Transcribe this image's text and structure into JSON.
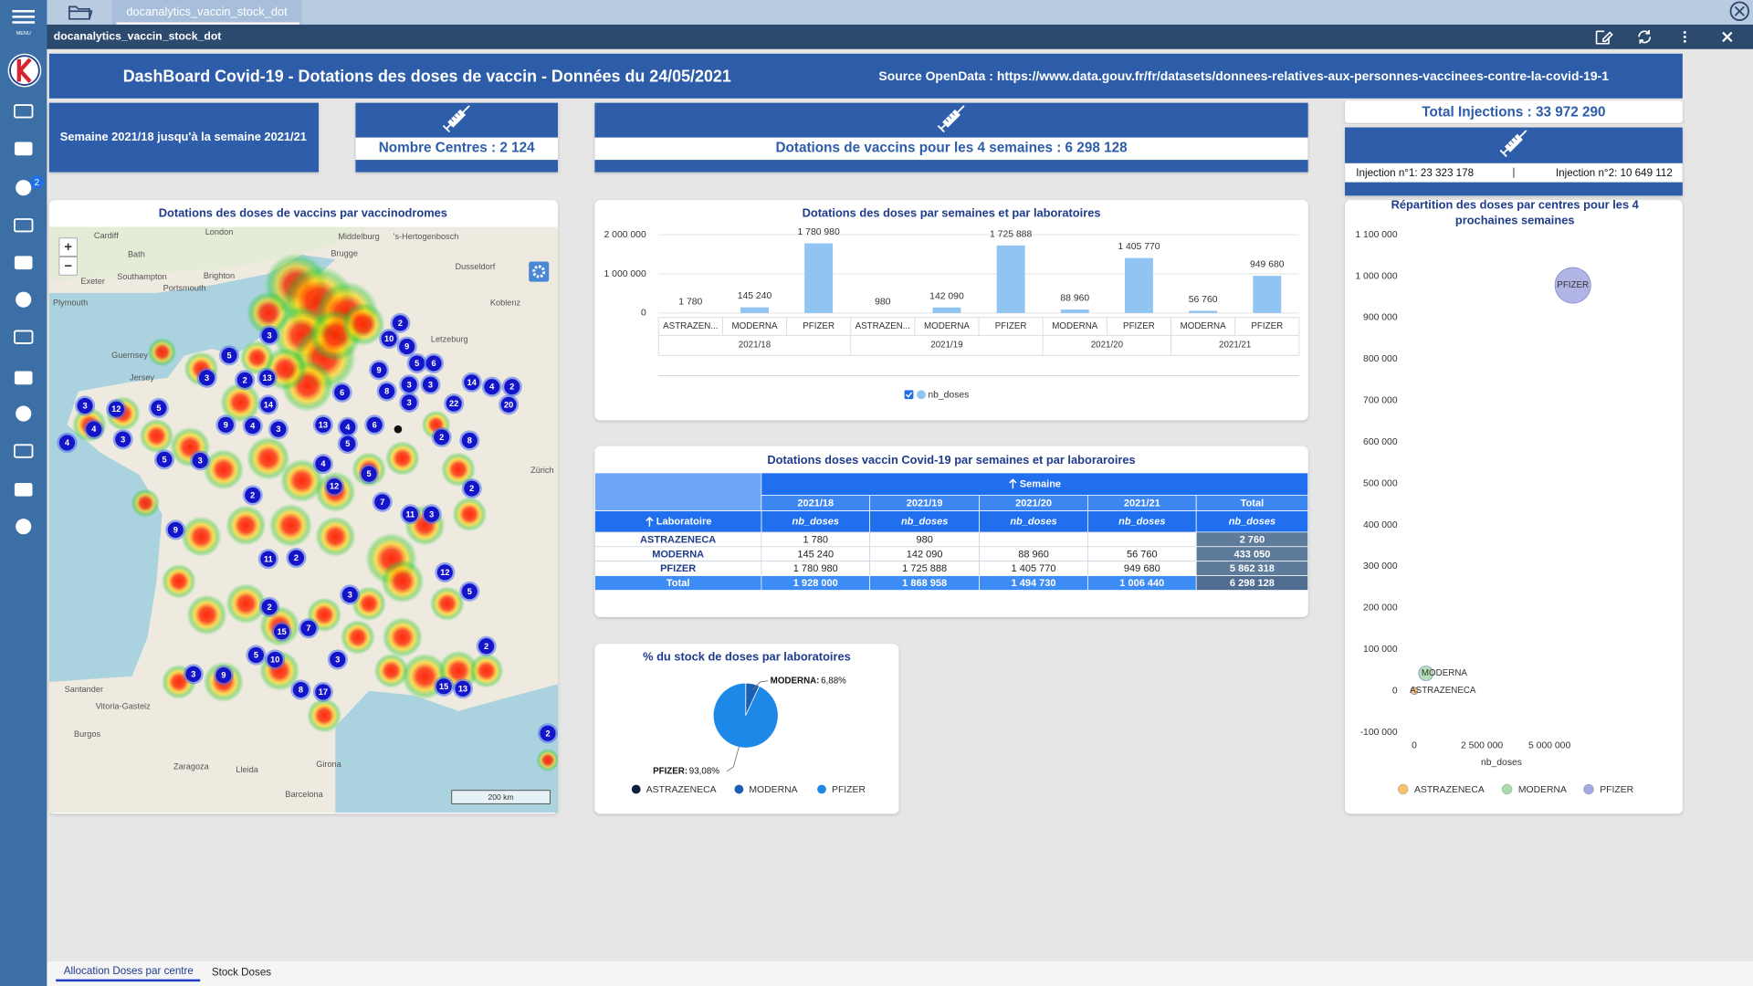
{
  "app": {
    "tab": "docanalytics_vaccin_stock_dot",
    "title": "docanalytics_vaccin_stock_dot",
    "menu_label": "MENU",
    "badge": 2
  },
  "header": {
    "title": "DashBoard Covid-19 - Dotations des doses de vaccin - Données du 24/05/2021",
    "source": "Source OpenData : https://www.data.gouv.fr/fr/datasets/donnees-relatives-aux-personnes-vaccinees-contre-la-covid-19-1"
  },
  "kpis": {
    "period": "Semaine 2021/18 jusqu'à la semaine 2021/21",
    "centres": "Nombre Centres : 2 124",
    "dotations": "Dotations de vaccins pour les 4 semaines : 6 298 128",
    "total": "Total Injections : 33 972 290",
    "injection1": "Injection n°1: 23 323 178",
    "injection2": "Injection n°2: 10 649 112"
  },
  "map": {
    "title": "Dotations des doses de vaccins par vaccinodromes",
    "zoom_in": "+",
    "zoom_out": "−",
    "scale": "200 km",
    "places": [
      "Cardiff",
      "London",
      "Middelburg",
      "'s-Hertogenbosch",
      "Bath",
      "Brugge",
      "Dusseldorf",
      "Exeter",
      "Southampton",
      "Brighton",
      "Portsmouth",
      "Plymouth",
      "Koblenz",
      "Letzeburg",
      "Guernsey",
      "Jersey",
      "Zürich",
      "Santander",
      "Vitoria-Gasteiz",
      "Burgos",
      "Zaragoza",
      "Lleida",
      "Girona",
      "Barcelona"
    ],
    "clusters": [
      3,
      5,
      3,
      2,
      13,
      3,
      12,
      5,
      4,
      4,
      3,
      5,
      3,
      9,
      4,
      3,
      14,
      13,
      4,
      6,
      2,
      10,
      9,
      5,
      6,
      9,
      8,
      3,
      3,
      3,
      22,
      14,
      4,
      2,
      20,
      2,
      8,
      6,
      5,
      4,
      2,
      12,
      5,
      7,
      11,
      3,
      11,
      2,
      9,
      2,
      15,
      7,
      3,
      3,
      3,
      9,
      5,
      10,
      8,
      17,
      12,
      5,
      2,
      15,
      13,
      2,
      2
    ]
  },
  "chart_data": [
    {
      "type": "bar",
      "title": "Dotations des doses par semaines et par laboratoires",
      "categories": [
        "ASTRAZEN...",
        "MODERNA",
        "PFIZER",
        "ASTRAZEN...",
        "MODERNA",
        "PFIZER",
        "MODERNA",
        "PFIZER",
        "MODERNA",
        "PFIZER"
      ],
      "groups": [
        "2021/18",
        "2021/18",
        "2021/18",
        "2021/19",
        "2021/19",
        "2021/19",
        "2021/20",
        "2021/20",
        "2021/21",
        "2021/21"
      ],
      "series": [
        {
          "name": "nb_doses",
          "color": "#90c4f2",
          "values": [
            1780,
            145240,
            1780980,
            980,
            142090,
            1725888,
            88960,
            1405770,
            56760,
            949680
          ],
          "value_labels": [
            "1 780",
            "145 240",
            "1 780 980",
            "980",
            "142 090",
            "1 725 888",
            "88 960",
            "1 405 770",
            "56 760",
            "949 680"
          ]
        }
      ],
      "ylim": [
        0,
        2000000
      ],
      "yticks": [
        0,
        {
          "value": 1000000,
          "label": "1 000 000"
        },
        {
          "value": 2000000,
          "label": "2 000 000"
        }
      ],
      "grid": true
    },
    {
      "type": "pie",
      "title": "% du stock de doses par laboratoires",
      "categories": [
        "ASTRAZENECA",
        "MODERNA",
        "PFIZER"
      ],
      "values": [
        0.04,
        6.88,
        93.08
      ],
      "value_labels": [
        null,
        "6,88%",
        "93,08%"
      ],
      "colors": [
        "#0e1f3d",
        "#1b5fb5",
        "#1e88e8"
      ]
    },
    {
      "type": "scatter",
      "title": "Répartition des doses par centres pour les 4 prochaines semaines",
      "x_label": "nb_doses",
      "xlim": [
        0,
        6600000
      ],
      "xticks": [
        0,
        {
          "value": 2500000,
          "label": "2 500 000"
        },
        {
          "value": 5000000,
          "label": "5 000 000"
        }
      ],
      "ylim": [
        -100000,
        1100000
      ],
      "yticks": [
        {
          "value": -100000,
          "label": "-100 000"
        },
        0,
        {
          "value": 100000,
          "label": "100 000"
        },
        {
          "value": 200000,
          "label": "200 000"
        },
        {
          "value": 300000,
          "label": "300 000"
        },
        {
          "value": 400000,
          "label": "400 000"
        },
        {
          "value": 500000,
          "label": "500 000"
        },
        {
          "value": 600000,
          "label": "600 000"
        },
        {
          "value": 700000,
          "label": "700 000"
        },
        {
          "value": 800000,
          "label": "800 000"
        },
        {
          "value": 900000,
          "label": "900 000"
        },
        {
          "value": 1000000,
          "label": "1 000 000"
        },
        {
          "value": 1100000,
          "label": "1 100 000"
        }
      ],
      "series": [
        {
          "name": "ASTRAZENECA",
          "color": "#f7c06a",
          "x": [
            2760
          ],
          "values": [
            0
          ]
        },
        {
          "name": "MODERNA",
          "color": "#a9dca9",
          "x": [
            433050
          ],
          "values": [
            42000
          ]
        },
        {
          "name": "PFIZER",
          "color": "#a3a8e0",
          "x": [
            5862318
          ],
          "values": [
            978000
          ]
        }
      ]
    }
  ],
  "table": {
    "title": "Dotations doses vaccin Covid-19 par semaines et par laboraroires",
    "column_group": "Semaine",
    "row_header": "Laboratoire",
    "measure": "nb_doses",
    "columns": [
      "2021/18",
      "2021/19",
      "2021/20",
      "2021/21",
      "Total"
    ],
    "rows": [
      [
        "ASTRAZENECA",
        "1 780",
        "980",
        null,
        null,
        "2 760"
      ],
      [
        "MODERNA",
        "145 240",
        "142 090",
        "88 960",
        "56 760",
        "433 050"
      ],
      [
        "PFIZER",
        "1 780 980",
        "1 725 888",
        "1 405 770",
        "949 680",
        "5 862 318"
      ],
      [
        "Total",
        "1 928 000",
        "1 868 958",
        "1 494 730",
        "1 006 440",
        "6 298 128"
      ]
    ]
  },
  "tabs": [
    "Allocation Doses par centre",
    "Stock Doses"
  ]
}
